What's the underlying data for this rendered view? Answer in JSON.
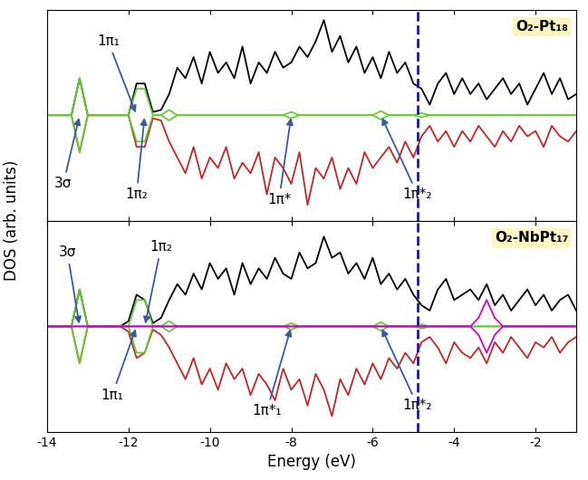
{
  "ylabel": "DOS (arb. units)",
  "chart_data": [
    {
      "type": "line",
      "title": "O₂-Pt₁₈",
      "x": [
        -14.0,
        -13.8,
        -13.6,
        -13.4,
        -13.2,
        -13.0,
        -12.8,
        -12.6,
        -12.4,
        -12.2,
        -12.0,
        -11.8,
        -11.6,
        -11.4,
        -11.2,
        -11.0,
        -10.8,
        -10.6,
        -10.4,
        -10.2,
        -10.0,
        -9.8,
        -9.6,
        -9.4,
        -9.2,
        -9.0,
        -8.8,
        -8.6,
        -8.4,
        -8.2,
        -8.0,
        -7.8,
        -7.6,
        -7.4,
        -7.2,
        -7.0,
        -6.8,
        -6.6,
        -6.4,
        -6.2,
        -6.0,
        -5.8,
        -5.6,
        -5.4,
        -5.2,
        -5.0,
        -4.8,
        -4.6,
        -4.4,
        -4.2,
        -4.0,
        -3.8,
        -3.6,
        -3.4,
        -3.2,
        -3.0,
        -2.8,
        -2.6,
        -2.4,
        -2.2,
        -2.0,
        -1.8,
        -1.6,
        -1.4,
        -1.2,
        -1.0
      ],
      "series": [
        {
          "color": "#000000",
          "values": [
            0,
            0,
            0,
            0,
            3.5,
            0,
            0,
            0,
            0,
            0,
            0,
            3.0,
            3.0,
            0.3,
            0.5,
            2.0,
            4.5,
            3.5,
            5.5,
            3.0,
            6.0,
            4.0,
            5.0,
            3.5,
            6.5,
            3.0,
            5.0,
            4.0,
            6.0,
            4.5,
            5.0,
            6.5,
            5.5,
            7.0,
            9.0,
            6.0,
            7.5,
            5.0,
            6.5,
            4.0,
            5.5,
            3.5,
            6.0,
            4.0,
            5.0,
            3.0,
            2.5,
            1.0,
            3.0,
            4.0,
            2.0,
            3.5,
            2.0,
            3.0,
            1.5,
            2.5,
            3.5,
            2.0,
            3.0,
            1.0,
            2.5,
            4.0,
            2.0,
            3.5,
            1.5,
            2.0
          ]
        },
        {
          "color": "#c0262b",
          "values": [
            0,
            0,
            0,
            0,
            -3.5,
            0,
            0,
            0,
            0,
            0,
            0,
            -3.0,
            -3.0,
            -0.3,
            -0.5,
            -2.5,
            -4.0,
            -5.5,
            -3.0,
            -6.0,
            -4.0,
            -5.0,
            -3.0,
            -6.0,
            -4.5,
            -5.5,
            -3.5,
            -7.5,
            -4.0,
            -5.0,
            -6.5,
            -3.5,
            -8.5,
            -5.0,
            -6.0,
            -4.0,
            -7.0,
            -5.0,
            -6.5,
            -3.5,
            -5.0,
            -4.0,
            -3.0,
            -4.5,
            -2.5,
            -4.0,
            -2.0,
            -1.0,
            -2.5,
            -1.5,
            -3.0,
            -1.5,
            -2.5,
            -1.0,
            -2.0,
            -3.0,
            -1.5,
            -2.5,
            -1.0,
            -2.0,
            -1.5,
            -3.0,
            -1.0,
            -2.0,
            -2.5,
            -1.5
          ]
        },
        {
          "color": "#66cc33",
          "values": [
            0,
            0,
            0,
            0,
            3.5,
            0,
            0,
            0,
            0,
            0,
            0,
            2.5,
            2.5,
            0,
            0,
            0.5,
            0,
            0,
            0,
            0,
            0,
            0,
            0,
            0,
            0,
            0,
            0,
            0,
            0,
            0,
            0.3,
            0,
            0,
            0,
            0,
            0,
            0,
            0,
            0,
            0,
            0,
            0.4,
            0,
            0,
            0,
            0,
            0.2,
            0,
            0,
            0,
            0,
            0,
            0,
            0,
            0,
            0,
            0,
            0,
            0,
            0,
            0,
            0,
            0,
            0,
            0,
            0
          ]
        },
        {
          "color": "#66cc33",
          "values": [
            0,
            0,
            0,
            0,
            -3.5,
            0,
            0,
            0,
            0,
            0,
            0,
            -2.5,
            -2.5,
            0,
            0,
            -0.5,
            0,
            0,
            0,
            0,
            0,
            0,
            0,
            0,
            0,
            0,
            0,
            0,
            0,
            0,
            -0.3,
            0,
            0,
            0,
            0,
            0,
            0,
            0,
            0,
            0,
            0,
            -0.4,
            0,
            0,
            0,
            0,
            -0.2,
            0,
            0,
            0,
            0,
            0,
            0,
            0,
            0,
            0,
            0,
            0,
            0,
            0,
            0,
            0,
            0,
            0,
            0,
            0
          ]
        }
      ],
      "fermi_level": -4.9,
      "annotations": [
        {
          "text": "3σ",
          "x": -13.2
        },
        {
          "text": "1π₁",
          "x": -11.8
        },
        {
          "text": "1π₂",
          "x": -11.6
        },
        {
          "text": "1π*",
          "x": -8.0
        },
        {
          "text": "1π*₂",
          "x": -5.8
        }
      ],
      "xlim": [
        -14,
        -1
      ],
      "ylim": [
        -10,
        10
      ],
      "xticks": [
        -14,
        -12,
        -10,
        -8,
        -6,
        -4,
        -2
      ],
      "tick_labels": false
    },
    {
      "type": "line",
      "title": "O₂-NbPt₁₇",
      "xlabel": "Energy (eV)",
      "x": [
        -14.0,
        -13.8,
        -13.6,
        -13.4,
        -13.2,
        -13.0,
        -12.8,
        -12.6,
        -12.4,
        -12.2,
        -12.0,
        -11.8,
        -11.6,
        -11.4,
        -11.2,
        -11.0,
        -10.8,
        -10.6,
        -10.4,
        -10.2,
        -10.0,
        -9.8,
        -9.6,
        -9.4,
        -9.2,
        -9.0,
        -8.8,
        -8.6,
        -8.4,
        -8.2,
        -8.0,
        -7.8,
        -7.6,
        -7.4,
        -7.2,
        -7.0,
        -6.8,
        -6.6,
        -6.4,
        -6.2,
        -6.0,
        -5.8,
        -5.6,
        -5.4,
        -5.2,
        -5.0,
        -4.8,
        -4.6,
        -4.4,
        -4.2,
        -4.0,
        -3.8,
        -3.6,
        -3.4,
        -3.2,
        -3.0,
        -2.8,
        -2.6,
        -2.4,
        -2.2,
        -2.0,
        -1.8,
        -1.6,
        -1.4,
        -1.2,
        -1.0
      ],
      "series": [
        {
          "color": "#000000",
          "values": [
            0,
            0,
            0,
            0,
            3.5,
            0,
            0,
            0,
            0,
            0,
            0.5,
            3.0,
            2.5,
            0.3,
            0.8,
            2.5,
            4.0,
            3.0,
            5.0,
            3.5,
            6.0,
            4.5,
            5.5,
            3.0,
            6.0,
            4.0,
            5.5,
            4.5,
            6.5,
            5.0,
            4.5,
            7.0,
            5.5,
            6.0,
            8.5,
            6.5,
            7.0,
            5.0,
            6.0,
            4.5,
            6.5,
            4.0,
            5.0,
            3.5,
            4.5,
            3.0,
            2.0,
            1.5,
            3.5,
            4.5,
            2.5,
            3.0,
            3.5,
            2.5,
            4.0,
            2.0,
            3.0,
            1.5,
            2.5,
            3.5,
            2.0,
            3.0,
            1.5,
            2.5,
            3.0,
            1.5
          ]
        },
        {
          "color": "#c0262b",
          "values": [
            0,
            0,
            0,
            0,
            -3.5,
            0,
            0,
            0,
            0,
            0,
            -0.5,
            -3.0,
            -2.5,
            -0.3,
            -0.8,
            -2.0,
            -3.5,
            -5.0,
            -3.0,
            -5.5,
            -4.0,
            -6.0,
            -3.5,
            -5.0,
            -4.0,
            -6.5,
            -4.5,
            -5.5,
            -7.0,
            -4.0,
            -6.0,
            -5.0,
            -7.5,
            -4.5,
            -6.0,
            -8.5,
            -5.0,
            -6.5,
            -4.0,
            -5.5,
            -3.5,
            -5.0,
            -3.0,
            -4.0,
            -2.5,
            -3.5,
            -1.5,
            -1.0,
            -2.0,
            -3.5,
            -1.5,
            -2.5,
            -3.0,
            -2.0,
            -3.5,
            -1.5,
            -2.5,
            -1.0,
            -2.0,
            -3.0,
            -1.5,
            -2.0,
            -1.0,
            -2.5,
            -1.5,
            -1.0
          ]
        },
        {
          "color": "#66cc33",
          "values": [
            0,
            0,
            0,
            0,
            3.5,
            0,
            0,
            0,
            0,
            0,
            0,
            2.5,
            2.5,
            0,
            0,
            0.5,
            0,
            0,
            0,
            0,
            0,
            0,
            0,
            0,
            0,
            0,
            0,
            0,
            0,
            0,
            0.3,
            0,
            0,
            0,
            0,
            0,
            0,
            0,
            0,
            0,
            0,
            0.4,
            0,
            0,
            0,
            0,
            0.2,
            0,
            0,
            0,
            0,
            0,
            0,
            0,
            0,
            0,
            0,
            0,
            0,
            0,
            0,
            0,
            0,
            0,
            0,
            0
          ]
        },
        {
          "color": "#66cc33",
          "values": [
            0,
            0,
            0,
            0,
            -3.5,
            0,
            0,
            0,
            0,
            0,
            0,
            -2.5,
            -2.5,
            0,
            0,
            -0.5,
            0,
            0,
            0,
            0,
            0,
            0,
            0,
            0,
            0,
            0,
            0,
            0,
            0,
            0,
            -0.3,
            0,
            0,
            0,
            0,
            0,
            0,
            0,
            0,
            0,
            0,
            -0.4,
            0,
            0,
            0,
            0,
            -0.2,
            0,
            0,
            0,
            0,
            0,
            0,
            0,
            0,
            0,
            0,
            0,
            0,
            0,
            0,
            0,
            0,
            0,
            0,
            0
          ]
        },
        {
          "color": "#cc00cc",
          "values": [
            0,
            0,
            0,
            0,
            0,
            0,
            0,
            0,
            0,
            0,
            0,
            0,
            0,
            0,
            0,
            0,
            0,
            0,
            0,
            0,
            0,
            0,
            0,
            0,
            0,
            0,
            0,
            0,
            0,
            0,
            0,
            0,
            0,
            0,
            0,
            0,
            0,
            0,
            0,
            0,
            0,
            0,
            0,
            0,
            0,
            0,
            0,
            0,
            0,
            0,
            0,
            0,
            0,
            0.8,
            2.5,
            0.8,
            0,
            0,
            0,
            0,
            0,
            0,
            0,
            0,
            0,
            0
          ]
        },
        {
          "color": "#cc00cc",
          "values": [
            0,
            0,
            0,
            0,
            0,
            0,
            0,
            0,
            0,
            0,
            0,
            0,
            0,
            0,
            0,
            0,
            0,
            0,
            0,
            0,
            0,
            0,
            0,
            0,
            0,
            0,
            0,
            0,
            0,
            0,
            0,
            0,
            0,
            0,
            0,
            0,
            0,
            0,
            0,
            0,
            0,
            0,
            0,
            0,
            0,
            0,
            0,
            0,
            0,
            0,
            0,
            0,
            0,
            -0.8,
            -2.5,
            -0.8,
            0,
            0,
            0,
            0,
            0,
            0,
            0,
            0,
            0,
            0
          ]
        }
      ],
      "fermi_level": -4.9,
      "annotations": [
        {
          "text": "3σ",
          "x": -13.2
        },
        {
          "text": "1π₂",
          "x": -11.6
        },
        {
          "text": "1π₁",
          "x": -11.8
        },
        {
          "text": "1π*₁",
          "x": -8.0
        },
        {
          "text": "1π*₂",
          "x": -5.8
        }
      ],
      "xlim": [
        -14,
        -1
      ],
      "ylim": [
        -10,
        10
      ],
      "xticks": [
        -14,
        -12,
        -10,
        -8,
        -6,
        -4,
        -2
      ],
      "tick_labels": "x"
    }
  ]
}
